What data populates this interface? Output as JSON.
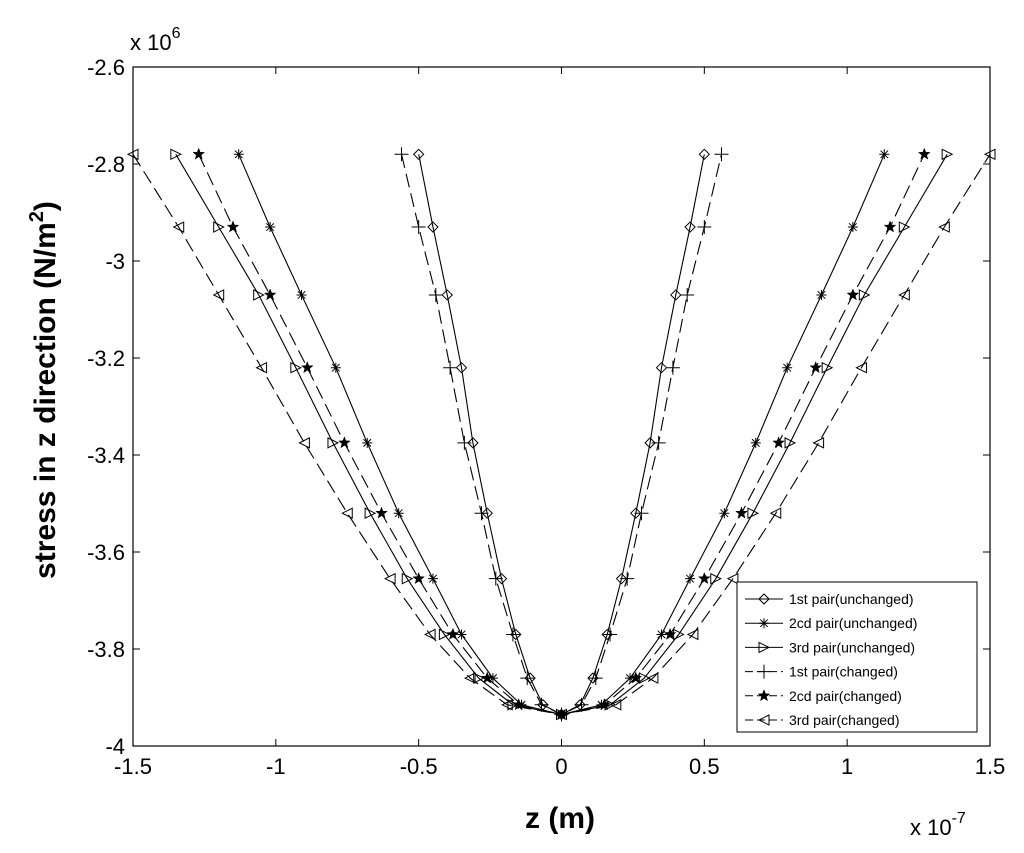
{
  "chart_data": {
    "type": "line",
    "xlabel": "z (m)",
    "ylabel": "stress in z direction (N/m2)",
    "ylabel_main": "stress in z direction (N/m",
    "ylabel_sup": "2",
    "ylabel_close": ")",
    "x_multiplier": "x 10",
    "x_multiplier_exp": "-7",
    "y_multiplier": "x 10",
    "y_multiplier_exp": "6",
    "xlim": [
      -1.5,
      1.5
    ],
    "ylim": [
      -4,
      -2.6
    ],
    "xticks": [
      -1.5,
      -1,
      -0.5,
      0,
      0.5,
      1,
      1.5
    ],
    "xtick_labels": [
      "-1.5",
      "-1",
      "-0.5",
      "0",
      "0.5",
      "1",
      "1.5"
    ],
    "yticks": [
      -4,
      -3.8,
      -3.6,
      -3.4,
      -3.2,
      -3,
      -2.8,
      -2.6
    ],
    "ytick_labels": [
      "-4",
      "-3.8",
      "-3.6",
      "-3.4",
      "-3.2",
      "-3",
      "-2.8",
      "-2.6"
    ],
    "grid": false,
    "legend_position": "bottom-right",
    "y": [
      -2.78,
      -2.93,
      -3.07,
      -3.22,
      -3.375,
      -3.52,
      -3.655,
      -3.77,
      -3.86,
      -3.915,
      -3.935
    ],
    "series": [
      {
        "name": "1st pair(unchanged)",
        "marker": "diamond",
        "dash": "solid",
        "x": [
          0.5,
          0.45,
          0.4,
          0.35,
          0.31,
          0.26,
          0.21,
          0.16,
          0.11,
          0.065,
          0
        ]
      },
      {
        "name": "2cd pair(unchanged)",
        "marker": "asterisk",
        "dash": "solid",
        "x": [
          1.13,
          1.02,
          0.91,
          0.79,
          0.68,
          0.57,
          0.45,
          0.35,
          0.24,
          0.14,
          0
        ]
      },
      {
        "name": "3rd pair(unchanged)",
        "marker": "triangle-right",
        "dash": "solid",
        "x": [
          1.35,
          1.2,
          1.06,
          0.93,
          0.8,
          0.67,
          0.54,
          0.41,
          0.29,
          0.17,
          0
        ]
      },
      {
        "name": "1st pair(changed)",
        "marker": "plus",
        "dash": "dashed",
        "x": [
          0.56,
          0.5,
          0.44,
          0.39,
          0.34,
          0.28,
          0.23,
          0.17,
          0.12,
          0.07,
          0
        ]
      },
      {
        "name": "2cd pair(changed)",
        "marker": "star",
        "dash": "dashed",
        "x": [
          1.27,
          1.15,
          1.02,
          0.89,
          0.76,
          0.63,
          0.5,
          0.38,
          0.26,
          0.15,
          0
        ]
      },
      {
        "name": "3rd pair(changed)",
        "marker": "triangle-left",
        "dash": "dashed",
        "x": [
          1.5,
          1.34,
          1.2,
          1.05,
          0.9,
          0.75,
          0.6,
          0.46,
          0.32,
          0.19,
          0
        ]
      }
    ],
    "symmetric_about_zero": true
  }
}
